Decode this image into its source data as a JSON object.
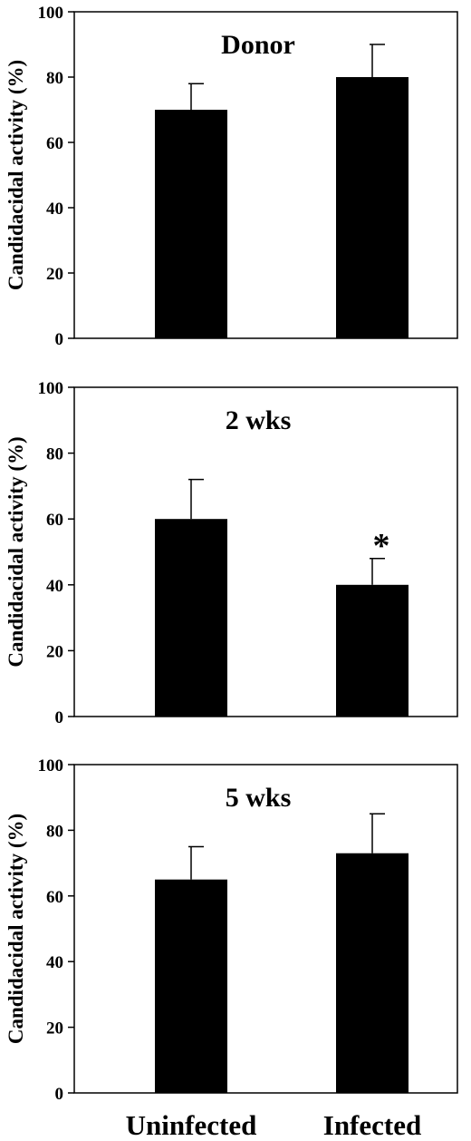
{
  "chart_data": [
    {
      "type": "bar",
      "title": "Donor",
      "ylabel": "Candidacidal activity (%)",
      "xlabel": "",
      "categories": [
        "Uninfected",
        "Infected"
      ],
      "values": [
        70,
        80
      ],
      "errors": [
        8,
        10
      ],
      "annotations": [
        "",
        ""
      ],
      "ylim": [
        0,
        100
      ],
      "yticks": [
        "0",
        "20",
        "40",
        "60",
        "80",
        "100"
      ]
    },
    {
      "type": "bar",
      "title": "2 wks",
      "ylabel": "Candidacidal activity (%)",
      "xlabel": "",
      "categories": [
        "Uninfected",
        "Infected"
      ],
      "values": [
        60,
        40
      ],
      "errors": [
        12,
        8
      ],
      "annotations": [
        "",
        "*"
      ],
      "ylim": [
        0,
        100
      ],
      "yticks": [
        "0",
        "20",
        "40",
        "60",
        "80",
        "100"
      ]
    },
    {
      "type": "bar",
      "title": "5 wks",
      "ylabel": "Candidacidal activity (%)",
      "xlabel": "",
      "categories": [
        "Uninfected",
        "Infected"
      ],
      "values": [
        65,
        73
      ],
      "errors": [
        10,
        12
      ],
      "annotations": [
        "",
        ""
      ],
      "ylim": [
        0,
        100
      ],
      "yticks": [
        "0",
        "20",
        "40",
        "60",
        "80",
        "100"
      ],
      "xticks": [
        "Uninfected",
        "Infected"
      ]
    }
  ],
  "colors": {
    "bar": "#000000",
    "axis": "#000000",
    "background": "#ffffff"
  }
}
